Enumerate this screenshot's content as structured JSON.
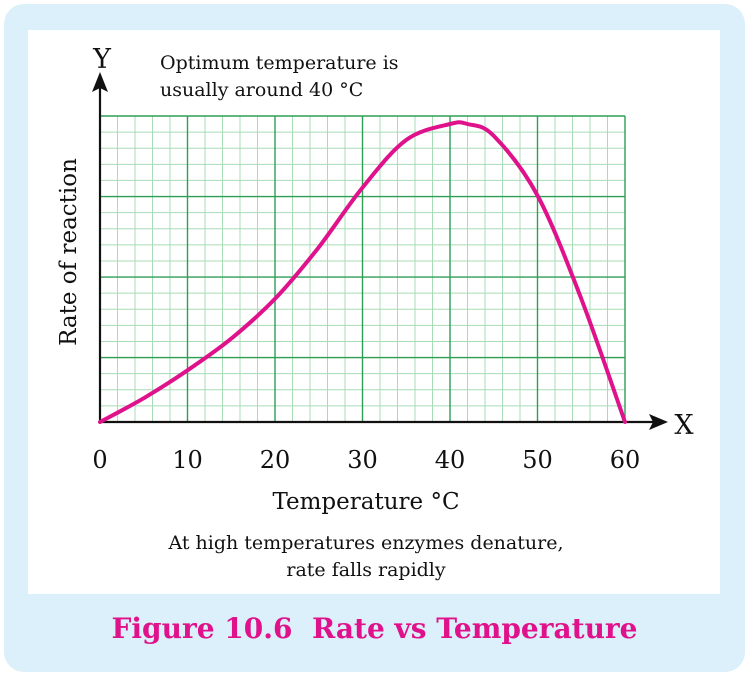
{
  "caption": "Figure 10.6  Rate vs Temperature",
  "colors": {
    "background": "#dbf0fa",
    "panel": "#ffffff",
    "grid_major": "#2e9e55",
    "grid_minor": "#a8dcb7",
    "curve": "#e0128b",
    "caption": "#e0128b",
    "axis": "#111111"
  },
  "chart_data": {
    "type": "line",
    "title": "",
    "annotation_top": [
      "Optimum temperature is",
      "usually around 40 °C"
    ],
    "annotation_bottom": [
      "At high temperatures enzymes denature,",
      "rate falls rapidly"
    ],
    "xlabel": "Temperature °C",
    "ylabel": "Rate of reaction",
    "x_axis_letter": "X",
    "y_axis_letter": "Y",
    "xlim": [
      0,
      60
    ],
    "ylim": [
      0,
      3.8
    ],
    "xticks": [
      "0",
      "10",
      "20",
      "30",
      "40",
      "50",
      "60"
    ],
    "grid": true,
    "series": [
      {
        "x": [
          0,
          5,
          10,
          15,
          20,
          25,
          30,
          35,
          40,
          42,
          45,
          50,
          55,
          60
        ],
        "y": [
          0,
          0.3,
          0.65,
          1.05,
          1.55,
          2.2,
          2.95,
          3.55,
          3.75,
          3.75,
          3.6,
          2.85,
          1.55,
          0
        ]
      }
    ]
  }
}
